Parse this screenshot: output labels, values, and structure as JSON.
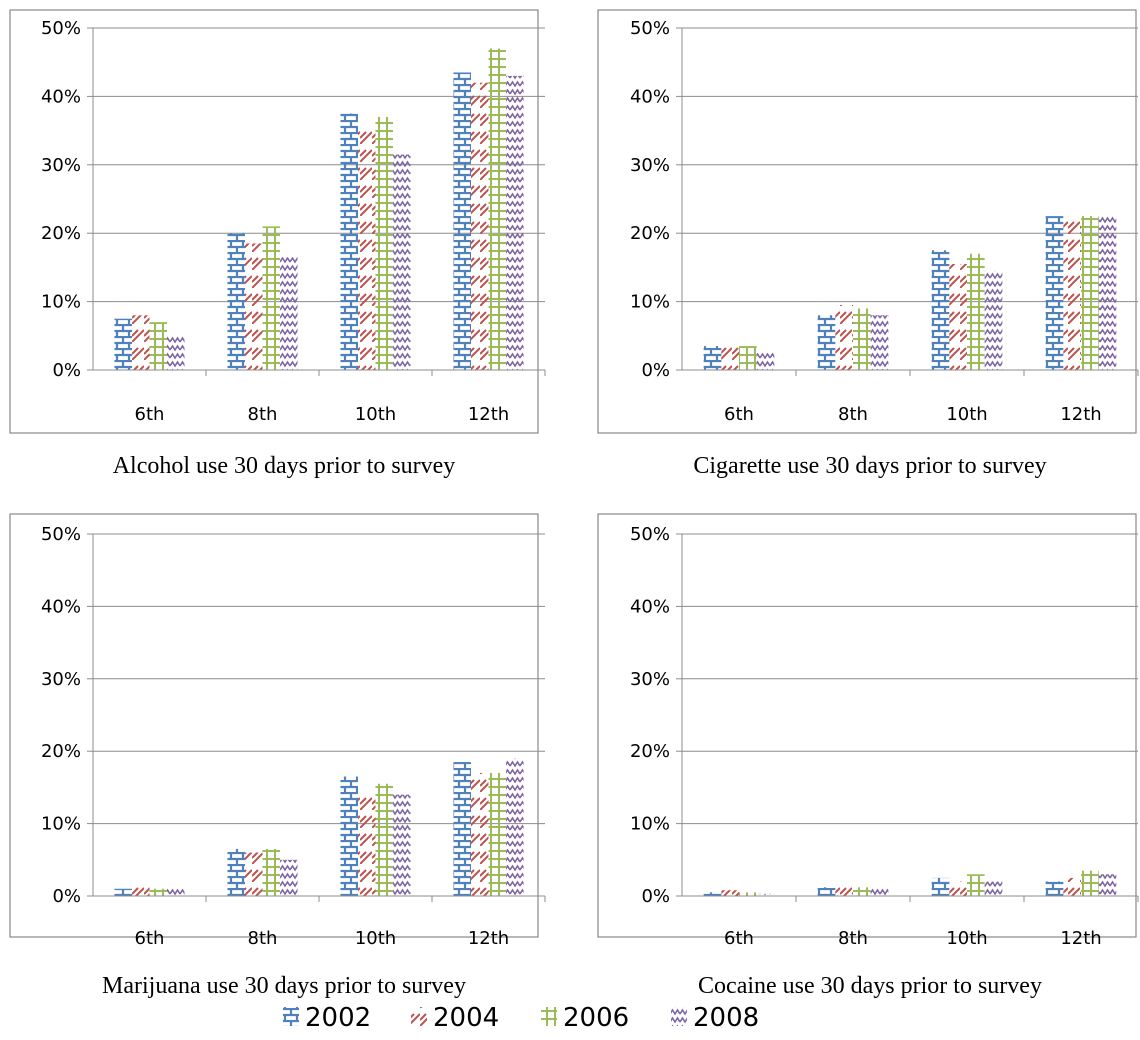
{
  "legend": {
    "entries": [
      {
        "label": "2002",
        "color": "#4F81BD",
        "pattern": "brick"
      },
      {
        "label": "2004",
        "color": "#C0504D",
        "pattern": "zigzag"
      },
      {
        "label": "2006",
        "color": "#9BBB59",
        "pattern": "grid"
      },
      {
        "label": "2008",
        "color": "#8064A2",
        "pattern": "wave"
      }
    ]
  },
  "chart_data": [
    {
      "type": "bar",
      "title": "Alcohol use 30 days prior to survey",
      "categories": [
        "6th",
        "8th",
        "10th",
        "12th"
      ],
      "ylim": [
        0,
        50
      ],
      "yticks": [
        "0%",
        "10%",
        "20%",
        "30%",
        "40%",
        "50%"
      ],
      "grid": true,
      "series": [
        {
          "name": "2002",
          "values": [
            7.5,
            20,
            37.5,
            43.5
          ]
        },
        {
          "name": "2004",
          "values": [
            8,
            18.5,
            35.5,
            42
          ]
        },
        {
          "name": "2006",
          "values": [
            7,
            21,
            37,
            47
          ]
        },
        {
          "name": "2008",
          "values": [
            5,
            16.5,
            31.5,
            43
          ]
        }
      ]
    },
    {
      "type": "bar",
      "title": "Cigarette use 30 days prior to survey",
      "categories": [
        "6th",
        "8th",
        "10th",
        "12th"
      ],
      "ylim": [
        0,
        50
      ],
      "yticks": [
        "0%",
        "10%",
        "20%",
        "30%",
        "40%",
        "50%"
      ],
      "grid": true,
      "series": [
        {
          "name": "2002",
          "values": [
            3.5,
            8,
            17.5,
            22.5
          ]
        },
        {
          "name": "2004",
          "values": [
            4,
            9.5,
            15.5,
            22
          ]
        },
        {
          "name": "2006",
          "values": [
            3.5,
            9,
            17,
            22.5
          ]
        },
        {
          "name": "2008",
          "values": [
            2.5,
            8,
            14.5,
            22.5
          ]
        }
      ]
    },
    {
      "type": "bar",
      "title": "Marijuana use 30 days prior to survey",
      "categories": [
        "6th",
        "8th",
        "10th",
        "12th"
      ],
      "ylim": [
        0,
        50
      ],
      "yticks": [
        "0%",
        "10%",
        "20%",
        "30%",
        "40%",
        "50%"
      ],
      "grid": true,
      "series": [
        {
          "name": "2002",
          "values": [
            1,
            6.5,
            16.5,
            18.5
          ]
        },
        {
          "name": "2004",
          "values": [
            1.5,
            6,
            14,
            17
          ]
        },
        {
          "name": "2006",
          "values": [
            1,
            6.5,
            15.5,
            17
          ]
        },
        {
          "name": "2008",
          "values": [
            1,
            5,
            14,
            19
          ]
        }
      ]
    },
    {
      "type": "bar",
      "title": "Cocaine use 30 days prior to survey",
      "categories": [
        "6th",
        "8th",
        "10th",
        "12th"
      ],
      "ylim": [
        0,
        50
      ],
      "yticks": [
        "0%",
        "10%",
        "20%",
        "30%",
        "40%",
        "50%"
      ],
      "grid": true,
      "series": [
        {
          "name": "2002",
          "values": [
            0.5,
            1.2,
            2.5,
            2
          ]
        },
        {
          "name": "2004",
          "values": [
            0.8,
            1.5,
            2,
            2.5
          ]
        },
        {
          "name": "2006",
          "values": [
            0.5,
            1.2,
            3,
            3.5
          ]
        },
        {
          "name": "2008",
          "values": [
            0.3,
            1,
            2,
            3
          ]
        }
      ]
    }
  ]
}
